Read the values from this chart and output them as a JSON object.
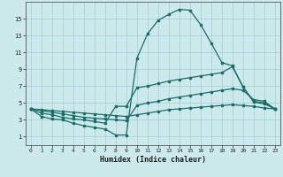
{
  "xlabel": "Humidex (Indice chaleur)",
  "background_color": "#cce9eb",
  "grid_color": "#aad4d8",
  "line_color": "#1a6e6a",
  "xlim": [
    -0.5,
    23.5
  ],
  "ylim": [
    0,
    17
  ],
  "xticks": [
    0,
    1,
    2,
    3,
    4,
    5,
    6,
    7,
    8,
    9,
    10,
    11,
    12,
    13,
    14,
    15,
    16,
    17,
    18,
    19,
    20,
    21,
    22,
    23
  ],
  "yticks": [
    1,
    3,
    5,
    7,
    9,
    11,
    13,
    15
  ],
  "line1_x": [
    0,
    1,
    2,
    3,
    4,
    5,
    6,
    7,
    8,
    9,
    10,
    11,
    12,
    13,
    14,
    15,
    16,
    17,
    18,
    19,
    20,
    21,
    22,
    23
  ],
  "line1_y": [
    4.3,
    3.4,
    3.1,
    3.0,
    2.6,
    2.3,
    2.1,
    1.9,
    1.2,
    1.2,
    10.3,
    13.2,
    14.8,
    15.5,
    16.1,
    16.0,
    14.3,
    12.1,
    9.8,
    9.4,
    6.9,
    5.2,
    5.0,
    4.3
  ],
  "line2_x": [
    0,
    1,
    2,
    3,
    4,
    5,
    6,
    7,
    8,
    9,
    10,
    11,
    12,
    13,
    14,
    15,
    16,
    17,
    18,
    19,
    20,
    21,
    22,
    23
  ],
  "line2_y": [
    4.3,
    3.8,
    3.6,
    3.3,
    3.1,
    3.0,
    2.8,
    2.6,
    4.6,
    4.6,
    6.8,
    7.0,
    7.3,
    7.6,
    7.8,
    8.0,
    8.2,
    8.4,
    8.6,
    9.3,
    6.9,
    5.1,
    4.9,
    4.3
  ],
  "line3_x": [
    0,
    1,
    2,
    3,
    4,
    5,
    6,
    7,
    8,
    9,
    10,
    11,
    12,
    13,
    14,
    15,
    16,
    17,
    18,
    19,
    20,
    21,
    22,
    23
  ],
  "line3_y": [
    4.3,
    4.1,
    3.9,
    3.7,
    3.5,
    3.3,
    3.2,
    3.1,
    3.0,
    2.9,
    4.7,
    5.0,
    5.2,
    5.5,
    5.7,
    5.9,
    6.1,
    6.3,
    6.5,
    6.7,
    6.5,
    5.4,
    5.2,
    4.3
  ],
  "line4_x": [
    0,
    1,
    2,
    3,
    4,
    5,
    6,
    7,
    8,
    9,
    10,
    11,
    12,
    13,
    14,
    15,
    16,
    17,
    18,
    19,
    20,
    21,
    22,
    23
  ],
  "line4_y": [
    4.3,
    4.2,
    4.1,
    4.0,
    3.9,
    3.8,
    3.7,
    3.6,
    3.5,
    3.4,
    3.6,
    3.8,
    4.0,
    4.2,
    4.3,
    4.4,
    4.5,
    4.6,
    4.7,
    4.8,
    4.7,
    4.6,
    4.4,
    4.3
  ]
}
